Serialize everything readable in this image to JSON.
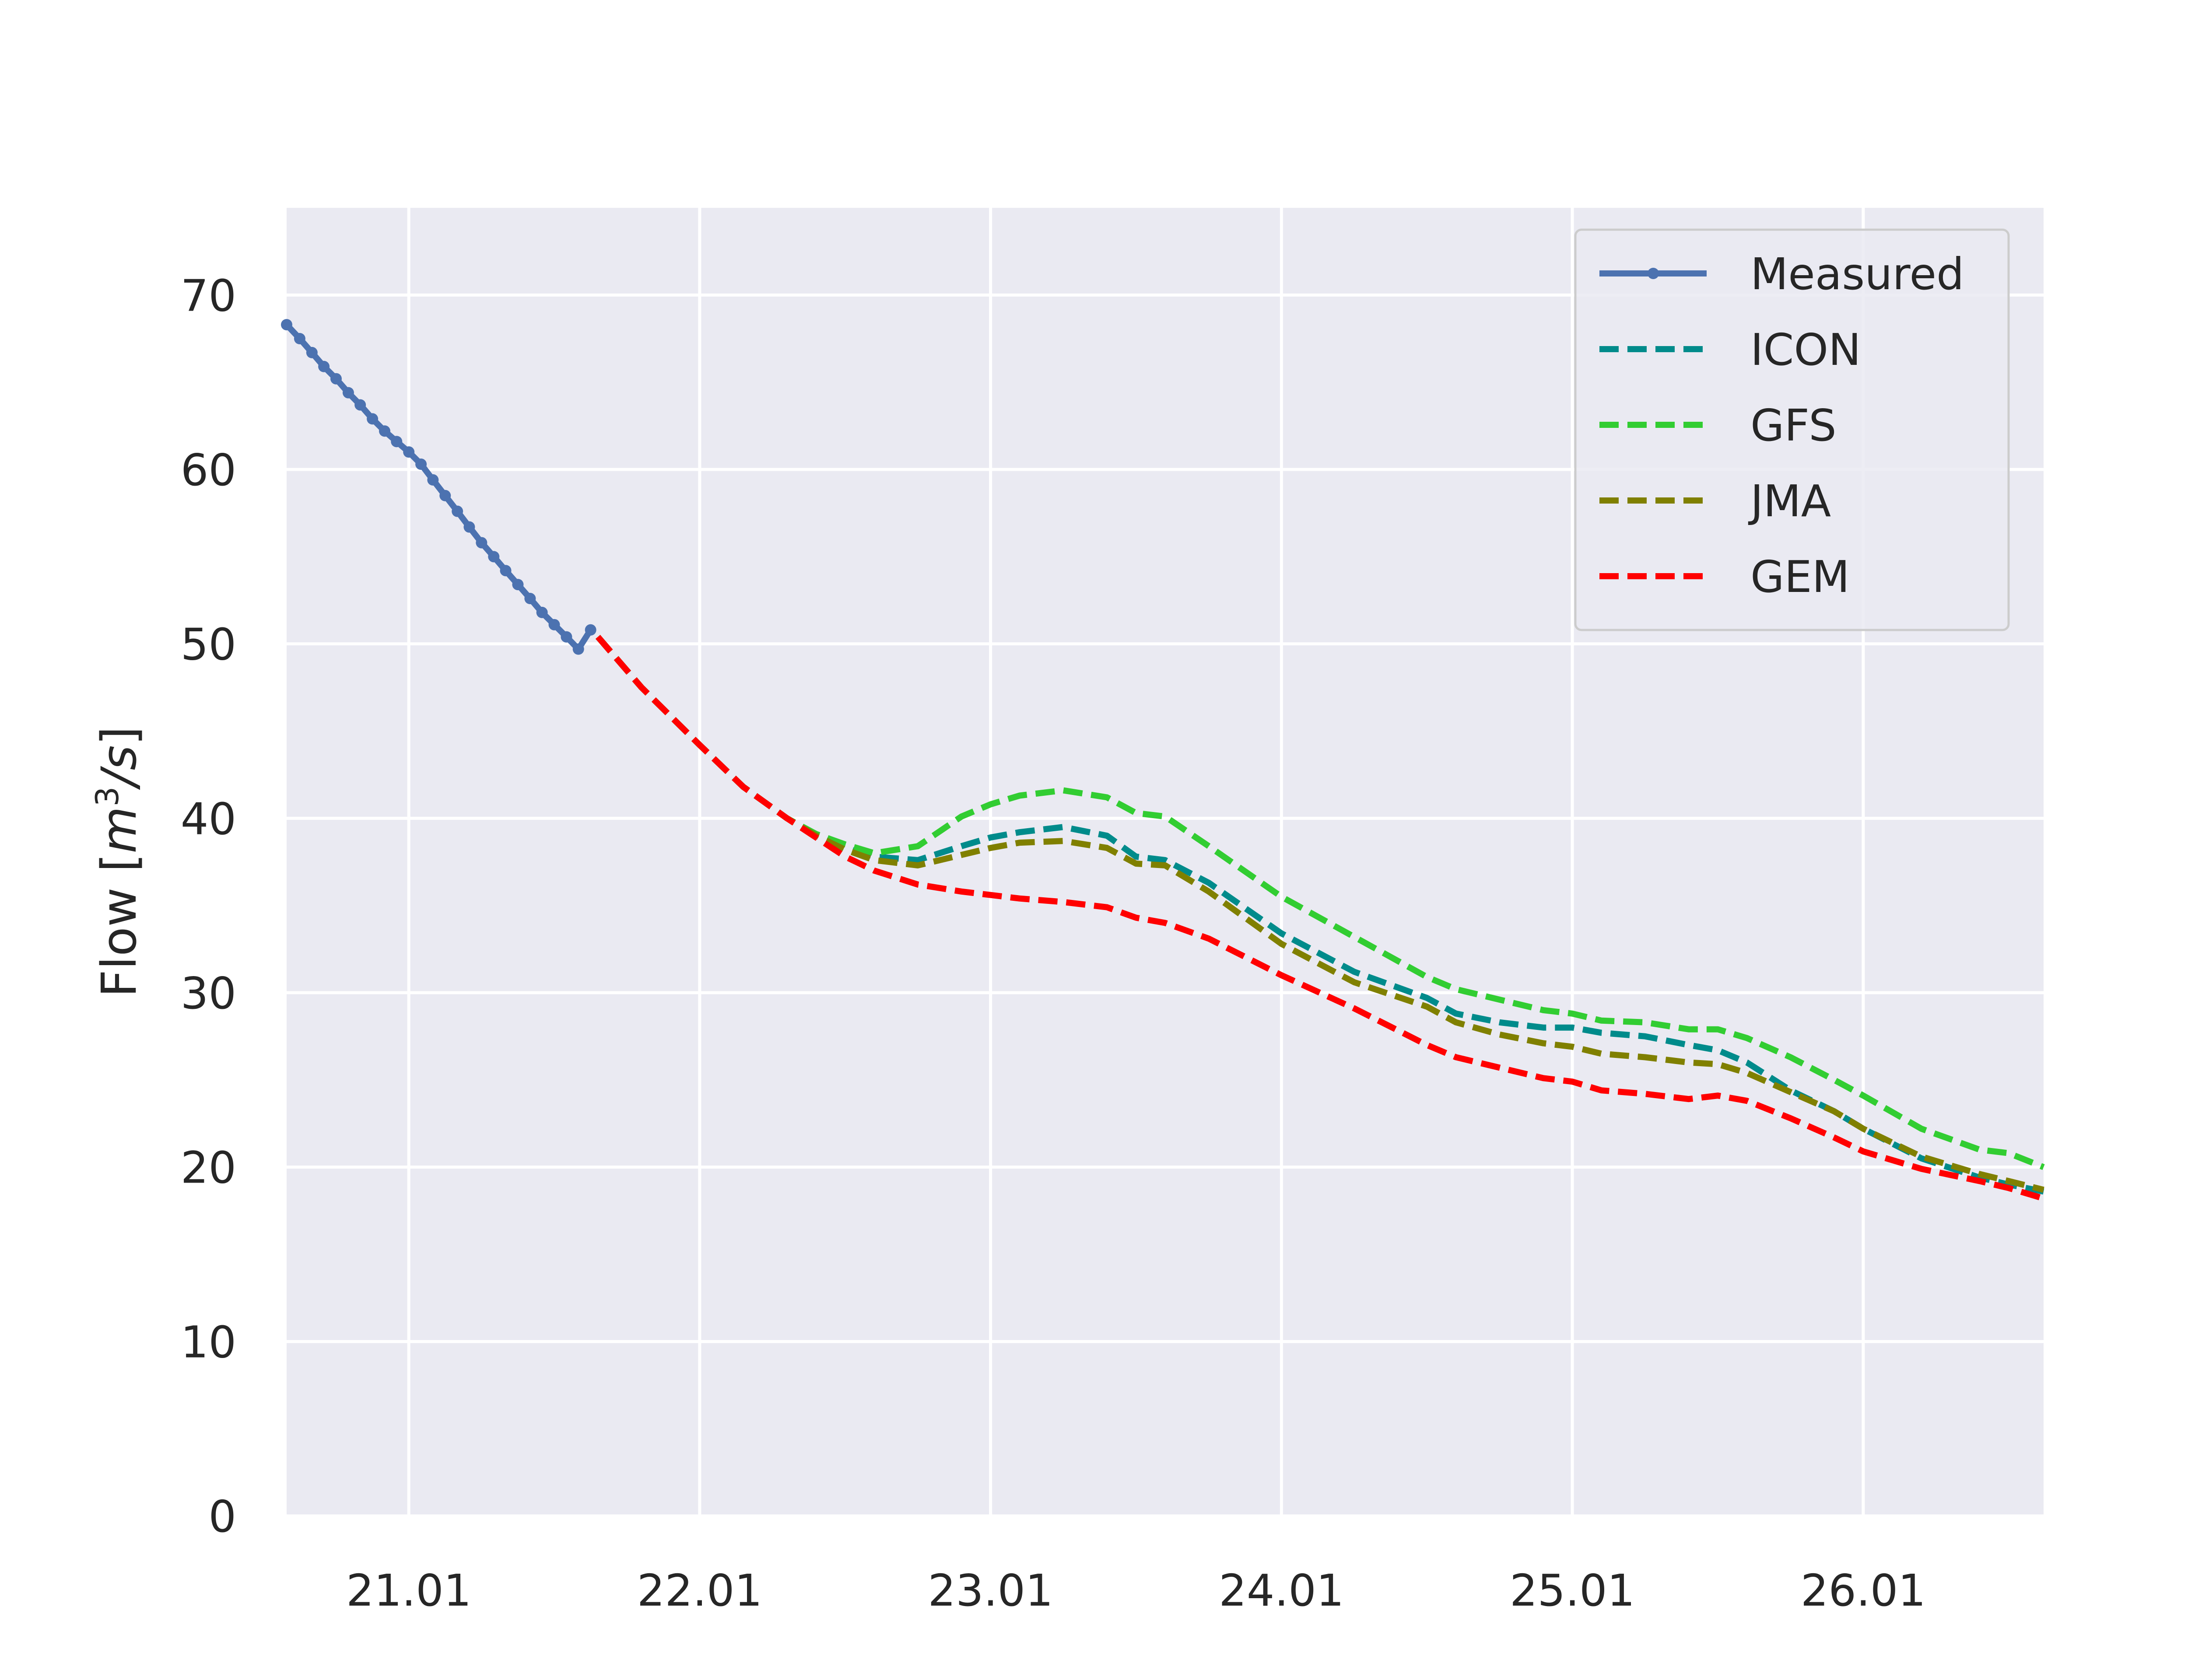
{
  "chart_data": {
    "type": "line",
    "title": "",
    "xlabel": "",
    "ylabel": "Flow [m³/s]",
    "ylabel_parts": {
      "prefix": "Flow [",
      "unit_base": "m",
      "unit_exp": "3",
      "unit_rest": "/s",
      "suffix": "]"
    },
    "xlim": [
      20.58,
      26.62
    ],
    "ylim": [
      0,
      75
    ],
    "x_unit": "day of month (January)",
    "xticks": [
      21,
      22,
      23,
      24,
      25,
      26
    ],
    "xtick_labels": [
      "21.01",
      "22.01",
      "23.01",
      "24.01",
      "25.01",
      "26.01"
    ],
    "yticks": [
      0,
      10,
      20,
      30,
      40,
      50,
      60,
      70
    ],
    "ytick_labels": [
      "0",
      "10",
      "20",
      "30",
      "40",
      "50",
      "60",
      "70"
    ],
    "grid": true,
    "legend_position": "top-right",
    "series": [
      {
        "name": "Measured",
        "style": "solid-markers",
        "color": "#4c72b0",
        "x": [
          20.58,
          20.625,
          20.667,
          20.708,
          20.75,
          20.792,
          20.833,
          20.875,
          20.917,
          20.958,
          21.0,
          21.042,
          21.083,
          21.125,
          21.167,
          21.208,
          21.25,
          21.292,
          21.333,
          21.375,
          21.417,
          21.458,
          21.5,
          21.542,
          21.583,
          21.625
        ],
        "y": [
          68.3,
          67.5,
          66.7,
          65.9,
          65.2,
          64.4,
          63.7,
          62.9,
          62.2,
          61.6,
          61.0,
          60.3,
          59.4,
          58.5,
          57.6,
          56.7,
          55.8,
          55.0,
          54.2,
          53.4,
          52.6,
          51.8,
          51.1,
          50.4,
          49.7,
          50.8
        ]
      },
      {
        "name": "ICON",
        "style": "dashed",
        "color": "#008b8b",
        "x": [
          21.65,
          21.8,
          22.0,
          22.15,
          22.3,
          22.4,
          22.5,
          22.6,
          22.75,
          22.9,
          23.0,
          23.1,
          23.25,
          23.4,
          23.5,
          23.6,
          23.75,
          24.0,
          24.25,
          24.5,
          24.6,
          24.75,
          24.9,
          25.0,
          25.1,
          25.25,
          25.4,
          25.5,
          25.6,
          25.75,
          25.9,
          26.0,
          26.2,
          26.4,
          26.5,
          26.62
        ],
        "y": [
          50.4,
          47.5,
          44.2,
          41.8,
          40.0,
          39.0,
          38.3,
          37.8,
          37.6,
          38.4,
          38.9,
          39.2,
          39.5,
          39.0,
          37.8,
          37.6,
          36.3,
          33.4,
          31.2,
          29.7,
          28.8,
          28.3,
          28.0,
          28.0,
          27.7,
          27.5,
          27.0,
          26.7,
          26.0,
          24.4,
          23.2,
          22.2,
          20.5,
          19.4,
          19.0,
          18.6
        ]
      },
      {
        "name": "GFS",
        "style": "dashed",
        "color": "#32cd32",
        "x": [
          21.65,
          21.8,
          22.0,
          22.15,
          22.3,
          22.4,
          22.5,
          22.6,
          22.75,
          22.9,
          23.0,
          23.1,
          23.25,
          23.4,
          23.5,
          23.6,
          23.75,
          24.0,
          24.25,
          24.5,
          24.6,
          24.75,
          24.9,
          25.0,
          25.1,
          25.25,
          25.4,
          25.5,
          25.6,
          25.75,
          25.9,
          26.0,
          26.2,
          26.4,
          26.5,
          26.62
        ],
        "y": [
          50.4,
          47.5,
          44.2,
          41.8,
          40.0,
          39.1,
          38.5,
          38.0,
          38.4,
          40.1,
          40.8,
          41.3,
          41.6,
          41.2,
          40.3,
          40.1,
          38.4,
          35.5,
          33.2,
          30.9,
          30.2,
          29.6,
          29.0,
          28.8,
          28.4,
          28.3,
          27.9,
          27.9,
          27.4,
          26.3,
          25.0,
          24.1,
          22.2,
          21.0,
          20.8,
          20.0
        ]
      },
      {
        "name": "JMA",
        "style": "dashed",
        "color": "#808000",
        "x": [
          21.65,
          21.8,
          22.0,
          22.15,
          22.3,
          22.4,
          22.5,
          22.6,
          22.75,
          22.9,
          23.0,
          23.1,
          23.25,
          23.4,
          23.5,
          23.6,
          23.75,
          24.0,
          24.25,
          24.5,
          24.6,
          24.75,
          24.9,
          25.0,
          25.1,
          25.25,
          25.4,
          25.5,
          25.6,
          25.75,
          25.9,
          26.0,
          26.2,
          26.4,
          26.5,
          26.62
        ],
        "y": [
          50.4,
          47.5,
          44.2,
          41.8,
          40.0,
          39.0,
          38.2,
          37.6,
          37.3,
          37.9,
          38.3,
          38.6,
          38.7,
          38.3,
          37.4,
          37.3,
          35.8,
          32.8,
          30.6,
          29.2,
          28.3,
          27.6,
          27.1,
          26.9,
          26.5,
          26.3,
          26.0,
          25.9,
          25.4,
          24.3,
          23.2,
          22.2,
          20.6,
          19.6,
          19.2,
          18.7
        ]
      },
      {
        "name": "GEM",
        "style": "dashed",
        "color": "#ff0000",
        "x": [
          21.65,
          21.8,
          22.0,
          22.15,
          22.3,
          22.4,
          22.5,
          22.6,
          22.75,
          22.9,
          23.0,
          23.1,
          23.25,
          23.4,
          23.5,
          23.6,
          23.75,
          24.0,
          24.25,
          24.5,
          24.6,
          24.75,
          24.9,
          25.0,
          25.1,
          25.25,
          25.4,
          25.5,
          25.6,
          25.75,
          25.9,
          26.0,
          26.2,
          26.4,
          26.5,
          26.62
        ],
        "y": [
          50.4,
          47.5,
          44.2,
          41.8,
          40.0,
          38.9,
          37.8,
          37.0,
          36.2,
          35.8,
          35.6,
          35.4,
          35.2,
          34.9,
          34.3,
          34.0,
          33.1,
          31.0,
          29.1,
          27.0,
          26.3,
          25.7,
          25.1,
          24.9,
          24.4,
          24.2,
          23.9,
          24.1,
          23.8,
          22.8,
          21.7,
          20.9,
          19.9,
          19.2,
          18.8,
          18.2
        ]
      }
    ]
  }
}
